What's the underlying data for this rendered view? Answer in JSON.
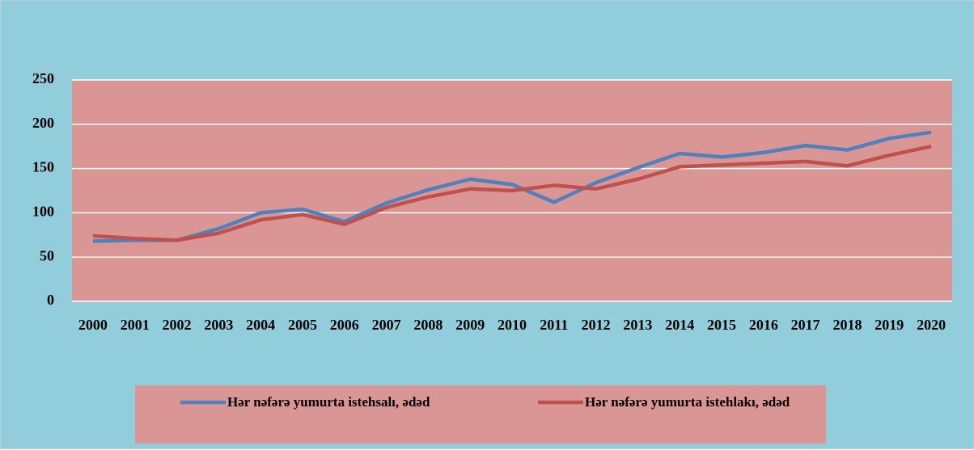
{
  "chart_data": {
    "type": "line",
    "categories": [
      "2000",
      "2001",
      "2002",
      "2003",
      "2004",
      "2005",
      "2006",
      "2007",
      "2008",
      "2009",
      "2010",
      "2011",
      "2012",
      "2013",
      "2014",
      "2015",
      "2016",
      "2017",
      "2018",
      "2019",
      "2020"
    ],
    "series": [
      {
        "name": "Hər nəfərə yumurta istehsalı, ədəd",
        "color": "#4F81BD",
        "values": [
          68,
          69,
          69,
          82,
          100,
          104,
          90,
          111,
          126,
          138,
          132,
          112,
          134,
          151,
          167,
          163,
          168,
          176,
          171,
          184,
          191
        ]
      },
      {
        "name": "Hər nəfərə yumurta istehlakı, ədəd",
        "color": "#C0504D",
        "values": [
          74,
          71,
          69,
          77,
          92,
          98,
          87,
          106,
          118,
          127,
          125,
          131,
          127,
          138,
          152,
          154,
          156,
          158,
          153,
          165,
          175
        ]
      }
    ],
    "ylim": [
      0,
      250
    ],
    "yticks": [
      0,
      50,
      100,
      150,
      200,
      250
    ],
    "grid": true,
    "legend": "bottom"
  }
}
